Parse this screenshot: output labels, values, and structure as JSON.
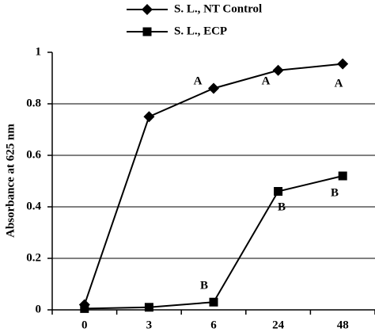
{
  "chart_data": {
    "type": "line",
    "y_label": "Absorbance at 625 nm",
    "categories": [
      "0",
      "3",
      "6",
      "24",
      "48"
    ],
    "series": [
      {
        "name": "S. L., NT Control",
        "color": "#000000",
        "marker": "diamond",
        "values": [
          0.02,
          0.75,
          0.86,
          0.93,
          0.955
        ]
      },
      {
        "name": "S. L., ECP",
        "color": "#000000",
        "marker": "square",
        "values": [
          0.005,
          0.01,
          0.03,
          0.46,
          0.52
        ]
      }
    ],
    "annotations": [
      "A",
      "A",
      "A",
      "B",
      "B",
      "B"
    ],
    "ylim": [
      0,
      1
    ],
    "yticks": [
      0,
      0.2,
      0.4,
      0.6,
      0.8,
      1
    ],
    "grid": true
  }
}
